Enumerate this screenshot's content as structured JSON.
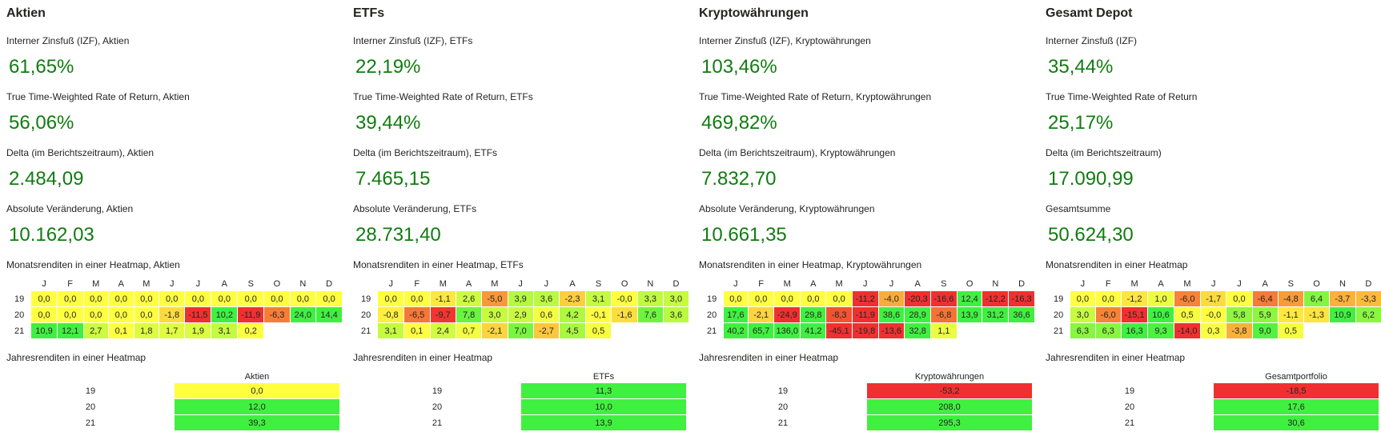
{
  "months": [
    "J",
    "F",
    "M",
    "A",
    "M",
    "J",
    "J",
    "A",
    "S",
    "O",
    "N",
    "D"
  ],
  "years": [
    "19",
    "20",
    "21"
  ],
  "colors": {
    "kpi_green": "#107c10",
    "heat_red": "#f03030",
    "heat_yellow": "#ffff40",
    "heat_green": "#40f040"
  },
  "panels": [
    {
      "title": "Aktien",
      "kpis": [
        {
          "label": "Interner Zinsfuß (IZF), Aktien",
          "value": "61,65%"
        },
        {
          "label": "True Time-Weighted Rate of Return, Aktien",
          "value": "56,06%"
        },
        {
          "label": "Delta (im Berichtszeitraum), Aktien",
          "value": "2.484,09"
        },
        {
          "label": "Absolute Veränderung, Aktien",
          "value": "10.162,03"
        }
      ],
      "monthly_title": "Monatsrenditen in einer Heatmap, Aktien",
      "monthly": [
        [
          "0,0",
          "0,0",
          "0,0",
          "0,0",
          "0,0",
          "0,0",
          "0,0",
          "0,0",
          "0,0",
          "0,0",
          "0,0",
          "0,0"
        ],
        [
          "0,0",
          "0,0",
          "0,0",
          "0,0",
          "0,0",
          "-1,8",
          "-11,5",
          "10,2",
          "-11,9",
          "-6,3",
          "24,0",
          "14,4"
        ],
        [
          "10,9",
          "12,1",
          "2,7",
          "0,1",
          "1,8",
          "1,7",
          "1,9",
          "3,1",
          "0,2",
          "",
          "",
          ""
        ]
      ],
      "yearly_title": "Jahresrenditen in einer Heatmap",
      "yearly_header": "Aktien",
      "yearly": [
        "0,0",
        "12,0",
        "39,3"
      ]
    },
    {
      "title": "ETFs",
      "kpis": [
        {
          "label": "Interner Zinsfuß (IZF), ETFs",
          "value": "22,19%"
        },
        {
          "label": "True Time-Weighted Rate of Return, ETFs",
          "value": "39,44%"
        },
        {
          "label": "Delta (im Berichtszeitraum), ETFs",
          "value": "7.465,15"
        },
        {
          "label": "Absolute Veränderung, ETFs",
          "value": "28.731,40"
        }
      ],
      "monthly_title": "Monatsrenditen in einer Heatmap, ETFs",
      "monthly": [
        [
          "0,0",
          "0,0",
          "-1,1",
          "2,6",
          "-5,0",
          "3,9",
          "3,6",
          "-2,3",
          "3,1",
          "-0,0",
          "3,3",
          "3,0"
        ],
        [
          "-0,8",
          "-6,5",
          "-9,7",
          "7,8",
          "3,0",
          "2,9",
          "0,6",
          "4,2",
          "-0,1",
          "-1,6",
          "7,6",
          "3,6"
        ],
        [
          "3,1",
          "0,1",
          "2,4",
          "0,7",
          "-2,1",
          "7,0",
          "-2,7",
          "4,5",
          "0,5",
          "",
          "",
          ""
        ]
      ],
      "yearly_title": "Jahresrenditen in einer Heatmap",
      "yearly_header": "ETFs",
      "yearly": [
        "11,3",
        "10,0",
        "13,9"
      ]
    },
    {
      "title": "Kryptowährungen",
      "kpis": [
        {
          "label": "Interner Zinsfuß (IZF), Kryptowährungen",
          "value": "103,46%"
        },
        {
          "label": "True Time-Weighted Rate of Return, Kryptowährungen",
          "value": "469,82%"
        },
        {
          "label": "Delta (im Berichtszeitraum), Kryptowährungen",
          "value": "7.832,70"
        },
        {
          "label": "Absolute Veränderung, Kryptowährungen",
          "value": "10.661,35"
        }
      ],
      "monthly_title": "Monatsrenditen in einer Heatmap, Kryptowährungen",
      "monthly": [
        [
          "0,0",
          "0,0",
          "0,0",
          "0,0",
          "0,0",
          "-11,2",
          "-4,0",
          "-20,3",
          "-16,6",
          "12,4",
          "-12,2",
          "-16,3"
        ],
        [
          "17,6",
          "-2,1",
          "-24,9",
          "29,8",
          "-8,3",
          "-11,9",
          "38,6",
          "28,9",
          "-6,8",
          "13,9",
          "31,2",
          "36,6"
        ],
        [
          "40,2",
          "65,7",
          "136,0",
          "41,2",
          "-45,1",
          "-19,8",
          "-13,6",
          "32,8",
          "1,1",
          "",
          "",
          ""
        ]
      ],
      "yearly_title": "Jahresrenditen in einer Heatmap",
      "yearly_header": "Kryptowährungen",
      "yearly": [
        "-53,2",
        "208,0",
        "295,3"
      ]
    },
    {
      "title": "Gesamt Depot",
      "kpis": [
        {
          "label": "Interner Zinsfuß (IZF)",
          "value": "35,44%"
        },
        {
          "label": "True Time-Weighted Rate of Return",
          "value": "25,17%"
        },
        {
          "label": "Delta (im Berichtszeitraum)",
          "value": "17.090,99"
        },
        {
          "label": "Gesamtsumme",
          "value": "50.624,30"
        }
      ],
      "monthly_title": "Monatsrenditen in einer Heatmap",
      "monthly": [
        [
          "0,0",
          "0,0",
          "-1,2",
          "1,0",
          "-6,0",
          "-1,7",
          "0,0",
          "-6,4",
          "-4,8",
          "6,4",
          "-3,7",
          "-3,3"
        ],
        [
          "3,0",
          "-6,0",
          "-15,1",
          "10,6",
          "0,5",
          "-0,0",
          "5,8",
          "5,9",
          "-1,1",
          "-1,3",
          "10,9",
          "6,2"
        ],
        [
          "6,3",
          "6,3",
          "16,3",
          "9,3",
          "-14,0",
          "0,3",
          "-3,8",
          "9,0",
          "0,5",
          "",
          "",
          ""
        ]
      ],
      "yearly_title": "Jahresrenditen in einer Heatmap",
      "yearly_header": "Gesamtportfolio",
      "yearly": [
        "-18,5",
        "17,6",
        "30,6"
      ]
    }
  ]
}
